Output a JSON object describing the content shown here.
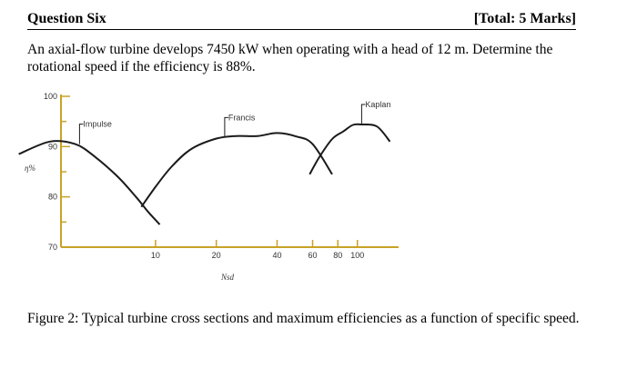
{
  "header": {
    "title": "Question Six",
    "marks": "[Total: 5 Marks]"
  },
  "question": {
    "text": "An axial-flow turbine develops 7450 kW when operating with a head of 12 m. Determine the rotational speed if the efficiency is 88%."
  },
  "figure": {
    "caption": "Figure 2: Typical turbine cross sections and maximum efficiencies as a function of specific speed."
  },
  "chart_data": {
    "type": "line",
    "xlabel": "Nsd",
    "ylabel": "η%",
    "ylim": [
      70,
      100
    ],
    "x_ticks": [
      "10",
      "20",
      "40",
      "60",
      "80",
      "100"
    ],
    "y_ticks": [
      "100",
      "90",
      "80",
      "70"
    ],
    "x_scale": "log",
    "grid": false,
    "series": [
      {
        "name": "Impulse",
        "x": [
          2.1,
          3,
          4,
          5,
          6.5,
          8,
          9.2,
          10.5
        ],
        "y": [
          88.5,
          91,
          90.5,
          88,
          84,
          80,
          77,
          74.5
        ]
      },
      {
        "name": "Francis",
        "x": [
          8.5,
          10,
          12,
          15,
          20,
          25,
          32,
          40,
          50,
          60,
          75
        ],
        "y": [
          78,
          82,
          86,
          89.5,
          91.6,
          92.1,
          92.1,
          92.7,
          92,
          90.5,
          84.5
        ]
      },
      {
        "name": "Kaplan",
        "x": [
          58,
          65,
          75,
          85,
          95,
          105,
          125,
          145
        ],
        "y": [
          84.5,
          88,
          91.5,
          93,
          94.3,
          94.4,
          94,
          91
        ]
      }
    ]
  }
}
